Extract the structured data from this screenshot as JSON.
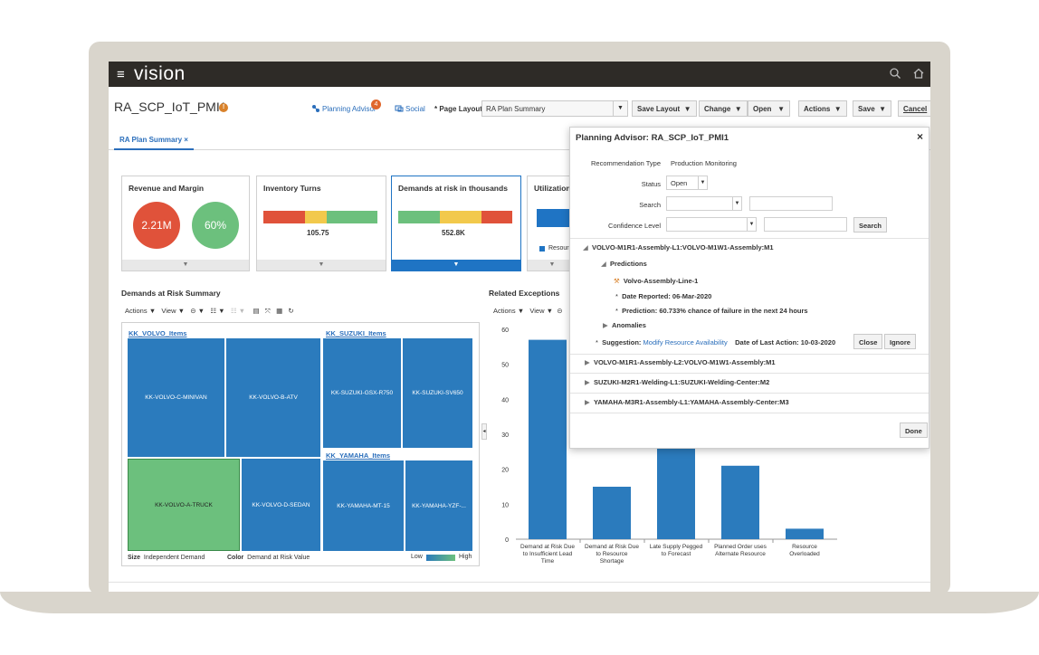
{
  "app": {
    "brand": "vision",
    "menu_icon": "hamburger-icon",
    "search_icon": "search-icon",
    "home_icon": "home-icon"
  },
  "header": {
    "title": "RA_SCP_IoT_PMI1",
    "help_icon": "info-icon",
    "planning_advisor": "Planning Advisor",
    "planning_advisor_count": "4",
    "social": "Social",
    "page_layout_label": "Page Layout",
    "page_layout_value": "RA Plan Summary",
    "buttons": {
      "save_layout": "Save Layout",
      "change": "Change",
      "open": "Open",
      "actions": "Actions",
      "save": "Save",
      "cancel": "Cancel"
    }
  },
  "tab": {
    "label": "RA Plan Summary",
    "close": "×"
  },
  "tiles": {
    "revenue": {
      "title": "Revenue and Margin",
      "revenue_value": "2.21M",
      "margin_value": "60%"
    },
    "inventory": {
      "title": "Inventory Turns",
      "value": "105.75"
    },
    "demands": {
      "title": "Demands at risk in thousands",
      "value": "552.8K"
    },
    "utilization": {
      "title": "Utilization",
      "legend": "Resour"
    }
  },
  "demands_summary": {
    "title": "Demands at Risk Summary",
    "toolbar": {
      "actions": "Actions",
      "view": "View"
    },
    "groups": {
      "volvo": {
        "title": "KK_VOLVO_Items",
        "items": [
          "KK-VOLVO-C-MINIVAN",
          "KK-VOLVO-B-ATV",
          "KK-VOLVO-A-TRUCK",
          "KK-VOLVO-D-SEDAN"
        ]
      },
      "suzuki": {
        "title": "KK_SUZUKI_Items",
        "items": [
          "KK-SUZUKI-GSX-R750",
          "KK-SUZUKI-SV650"
        ]
      },
      "yamaha": {
        "title": "KK_YAMAHA_Items",
        "items": [
          "KK-YAMAHA-MT-15",
          "KK-YAMAHA-YZF-..."
        ]
      }
    },
    "footer": {
      "size_label": "Size",
      "size_value": "Independent Demand",
      "color_label": "Color",
      "color_value": "Demand at Risk Value",
      "low": "Low",
      "high": "High"
    }
  },
  "related_exceptions": {
    "title": "Related Exceptions",
    "toolbar": {
      "actions": "Actions",
      "view": "View"
    }
  },
  "chart_data": {
    "type": "bar",
    "title": "Related Exceptions",
    "categories": [
      "Demand at Risk Due to Insufficient Lead Time",
      "Demand at Risk Due to Resource Shortage",
      "Late Supply Pegged to Forecast",
      "Planned Order uses Alternate Resource",
      "Resource Overloaded"
    ],
    "category_lines": [
      [
        "Demand at Risk Due",
        "to Insufficient Lead",
        "Time"
      ],
      [
        "Demand at Risk Due",
        "to Resource",
        "Shortage"
      ],
      [
        "Late Supply Pegged",
        "to Forecast"
      ],
      [
        "Planned Order uses",
        "Alternate Resource"
      ],
      [
        "Resource",
        "Overloaded"
      ]
    ],
    "values": [
      57,
      15,
      26,
      21,
      3
    ],
    "ylim": [
      0,
      60
    ],
    "yticks": [
      "0",
      "10",
      "20",
      "30",
      "40",
      "50",
      "60"
    ],
    "color": "#2b7bbd",
    "grid": false
  },
  "advisor": {
    "title": "Planning Advisor: RA_SCP_IoT_PMI1",
    "close": "×",
    "recommendation_type_label": "Recommendation Type",
    "recommendation_type_value": "Production Monitoring",
    "status_label": "Status",
    "status_value": "Open",
    "search_label": "Search",
    "confidence_label": "Confidence Level",
    "search_button": "Search",
    "tree": {
      "node1": "VOLVO-M1R1-Assembly-L1:VOLVO-M1W1-Assembly:M1",
      "predictions": "Predictions",
      "asset": "Volvo-Assembly-Line-1",
      "date_reported": "Date Reported: 06-Mar-2020",
      "prediction": "Prediction: 60.733% chance of failure in the next 24 hours",
      "anomalies": "Anomalies",
      "suggestion_label": "Suggestion:",
      "suggestion_link": "Modify Resource Availability",
      "last_action": "Date of Last Action: 10-03-2020",
      "close_button": "Close",
      "ignore_button": "Ignore",
      "node2": "VOLVO-M1R1-Assembly-L2:VOLVO-M1W1-Assembly:M1",
      "node3": "SUZUKI-M2R1-Welding-L1:SUZUKI-Welding-Center:M2",
      "node4": "YAMAHA-M3R1-Assembly-L1:YAMAHA-Assembly-Center:M3"
    },
    "done_button": "Done"
  }
}
